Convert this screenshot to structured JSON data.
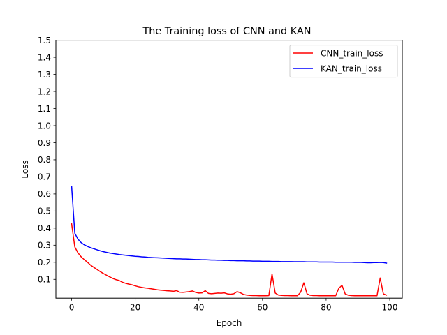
{
  "chart_data": {
    "type": "line",
    "title": "The Training loss of CNN and KAN",
    "xlabel": "Epoch",
    "ylabel": "Loss",
    "xlim": [
      -4.95,
      103.95
    ],
    "ylim": [
      -0.01,
      1.5
    ],
    "x_ticks": [
      0,
      20,
      40,
      60,
      80,
      100
    ],
    "y_ticks": [
      0.1,
      0.2,
      0.3,
      0.4,
      0.5,
      0.6,
      0.7,
      0.8,
      0.9,
      1.0,
      1.1,
      1.2,
      1.3,
      1.4,
      1.5
    ],
    "grid": false,
    "legend_position": "top-right",
    "series": [
      {
        "name": "CNN_train_loss",
        "color": "#ff0000",
        "values": [
          0.425,
          0.29,
          0.255,
          0.232,
          0.215,
          0.2,
          0.183,
          0.17,
          0.158,
          0.145,
          0.134,
          0.124,
          0.114,
          0.105,
          0.098,
          0.093,
          0.083,
          0.077,
          0.072,
          0.068,
          0.062,
          0.057,
          0.053,
          0.05,
          0.048,
          0.045,
          0.042,
          0.039,
          0.037,
          0.035,
          0.033,
          0.032,
          0.03,
          0.034,
          0.025,
          0.024,
          0.026,
          0.028,
          0.032,
          0.024,
          0.02,
          0.021,
          0.034,
          0.018,
          0.016,
          0.018,
          0.02,
          0.019,
          0.021,
          0.015,
          0.013,
          0.016,
          0.028,
          0.022,
          0.012,
          0.008,
          0.006,
          0.005,
          0.005,
          0.004,
          0.004,
          0.004,
          0.005,
          0.132,
          0.02,
          0.008,
          0.006,
          0.005,
          0.005,
          0.004,
          0.004,
          0.004,
          0.025,
          0.08,
          0.015,
          0.007,
          0.005,
          0.005,
          0.004,
          0.004,
          0.004,
          0.004,
          0.004,
          0.004,
          0.048,
          0.065,
          0.015,
          0.007,
          0.005,
          0.004,
          0.004,
          0.004,
          0.004,
          0.004,
          0.004,
          0.004,
          0.004,
          0.108,
          0.015,
          0.008
        ]
      },
      {
        "name": "KAN_train_loss",
        "color": "#0000ff",
        "values": [
          0.645,
          0.37,
          0.335,
          0.315,
          0.302,
          0.293,
          0.285,
          0.279,
          0.273,
          0.267,
          0.262,
          0.258,
          0.254,
          0.251,
          0.248,
          0.245,
          0.243,
          0.241,
          0.239,
          0.237,
          0.235,
          0.234,
          0.232,
          0.231,
          0.229,
          0.228,
          0.227,
          0.226,
          0.225,
          0.224,
          0.223,
          0.222,
          0.221,
          0.22,
          0.22,
          0.219,
          0.219,
          0.218,
          0.217,
          0.216,
          0.216,
          0.215,
          0.215,
          0.214,
          0.213,
          0.213,
          0.212,
          0.212,
          0.211,
          0.211,
          0.21,
          0.21,
          0.209,
          0.209,
          0.209,
          0.208,
          0.208,
          0.207,
          0.207,
          0.207,
          0.206,
          0.206,
          0.206,
          0.205,
          0.205,
          0.205,
          0.204,
          0.204,
          0.204,
          0.204,
          0.203,
          0.203,
          0.203,
          0.203,
          0.202,
          0.202,
          0.202,
          0.202,
          0.201,
          0.201,
          0.201,
          0.201,
          0.201,
          0.2,
          0.2,
          0.2,
          0.2,
          0.2,
          0.2,
          0.199,
          0.199,
          0.199,
          0.198,
          0.197,
          0.197,
          0.198,
          0.198,
          0.199,
          0.198,
          0.195
        ]
      }
    ]
  }
}
